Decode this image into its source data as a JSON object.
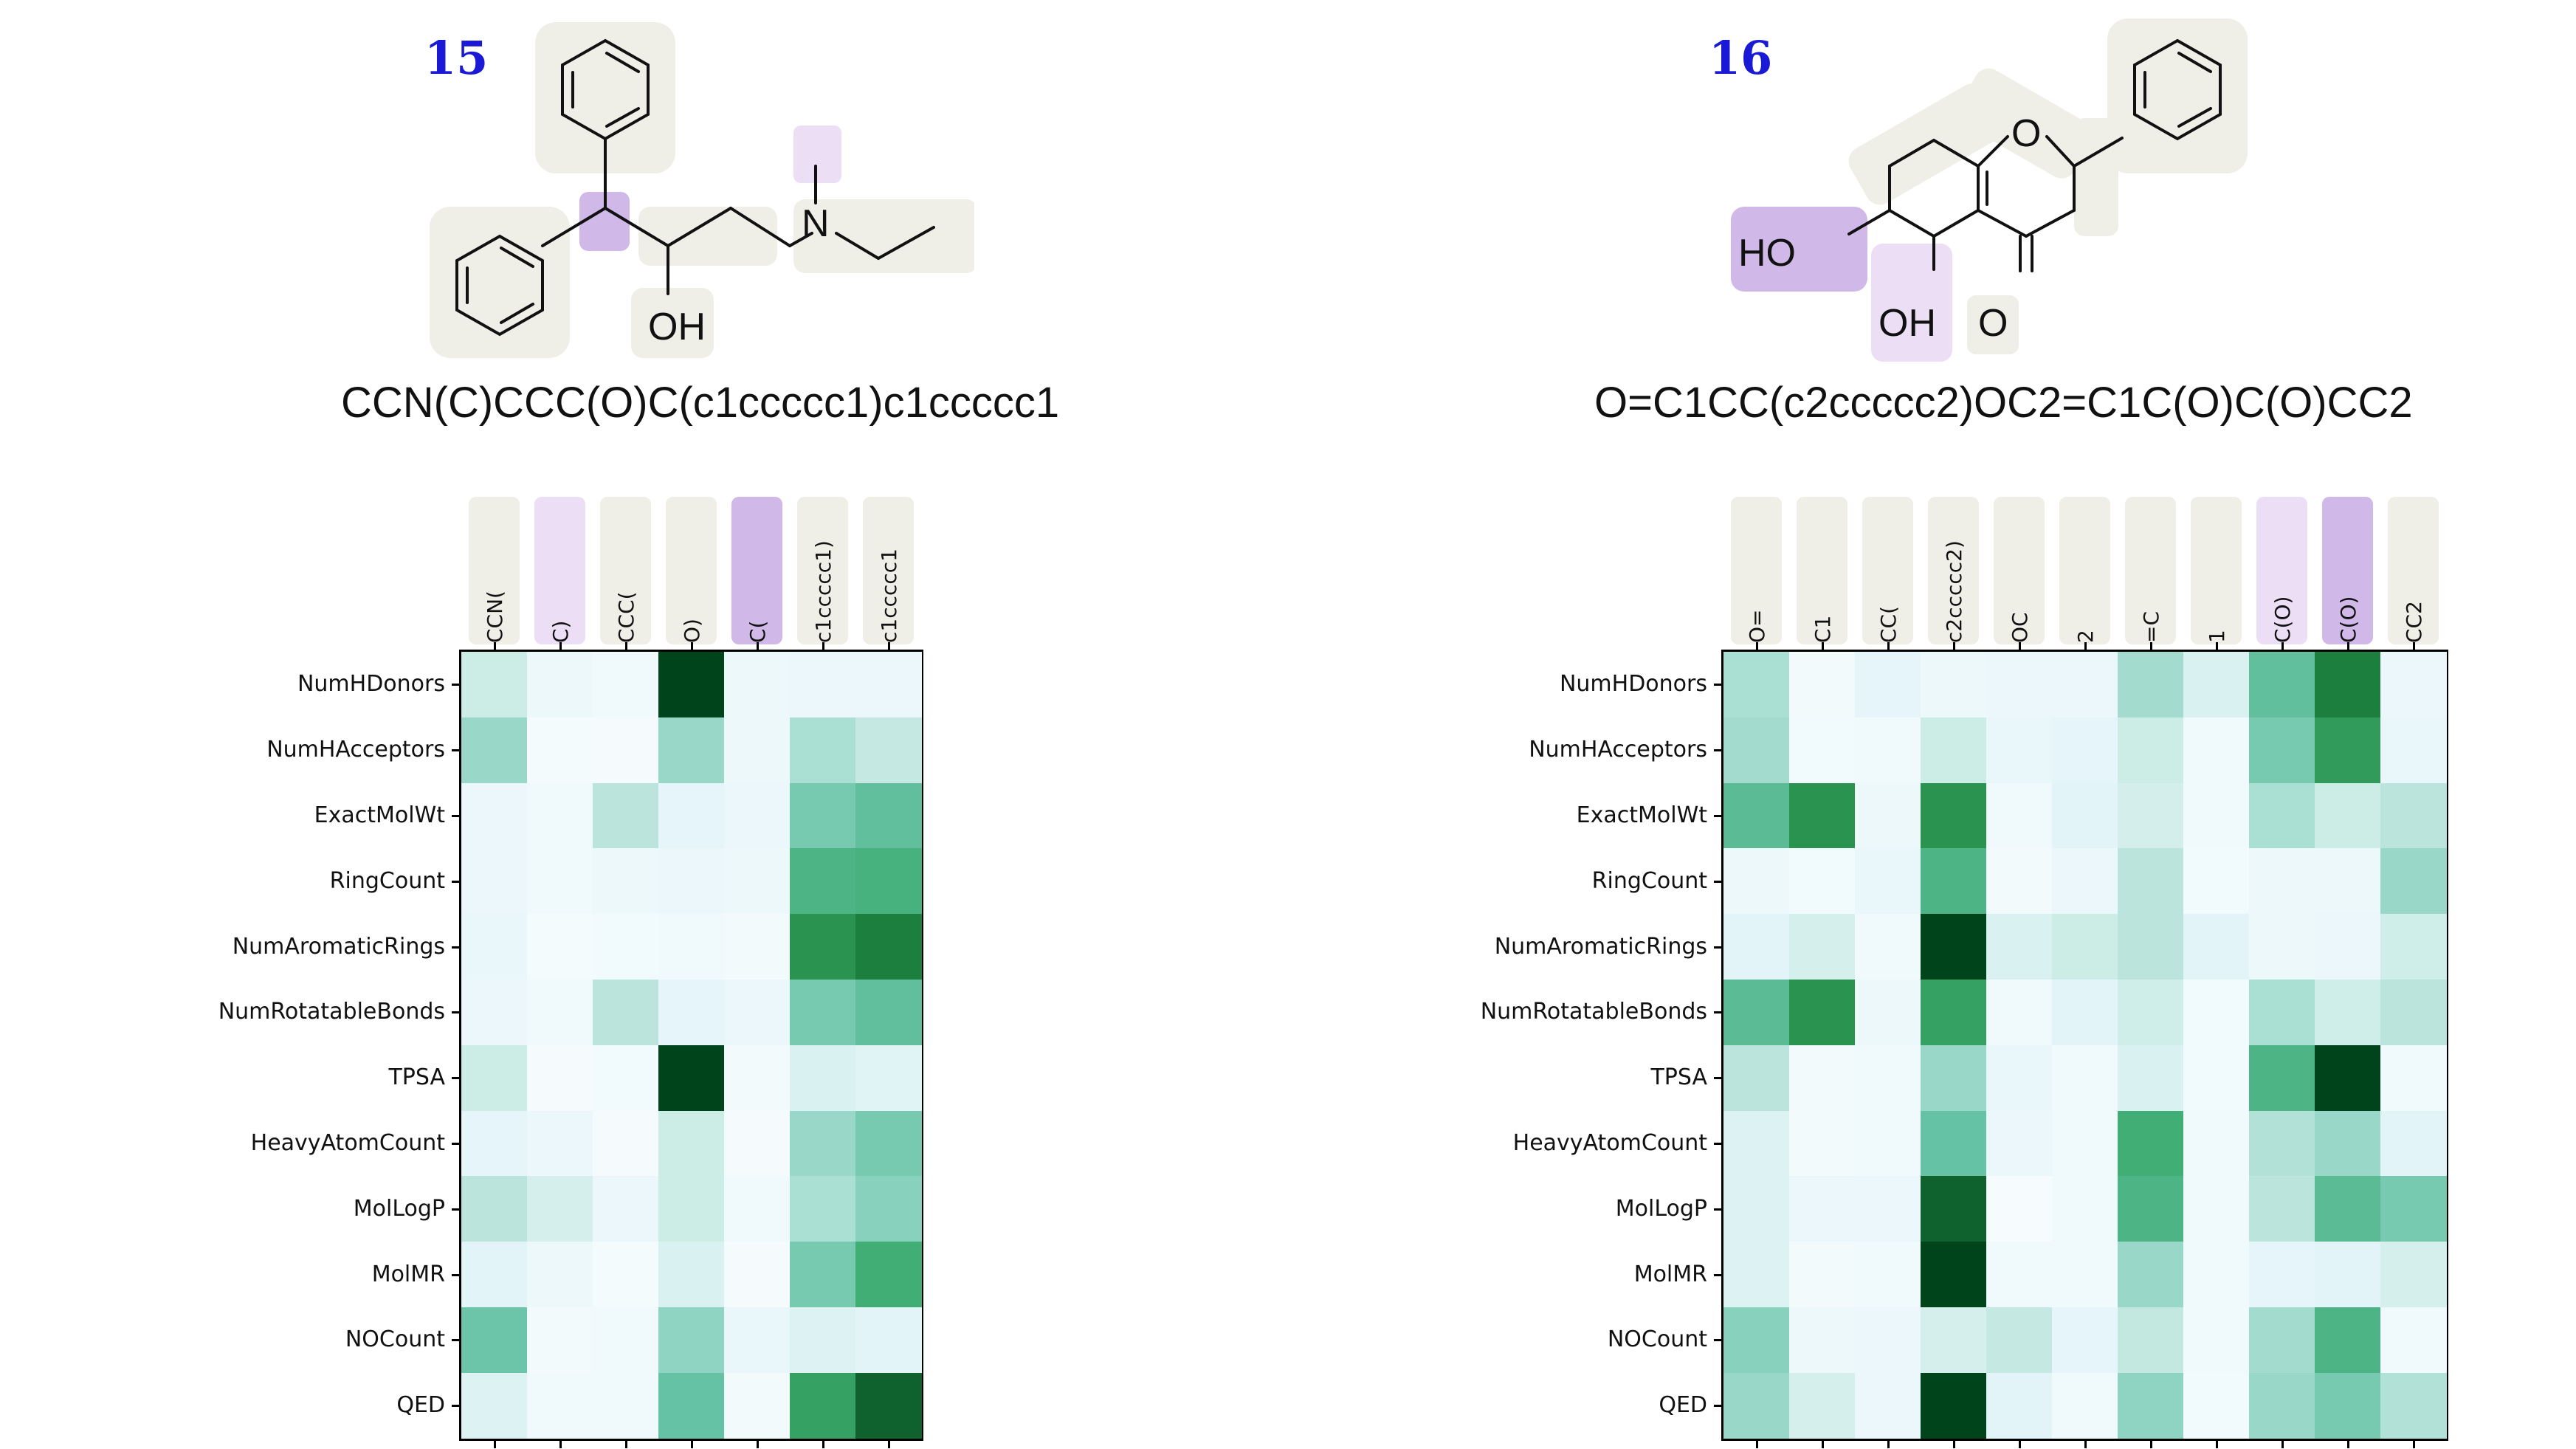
{
  "panels": [
    {
      "id": "15",
      "smiles": "CCN(C)CCC(O)C(c1ccccc1)c1ccccc1",
      "atom_labels": {
        "n": "N",
        "oh": "OH"
      },
      "chart_data": {
        "type": "heatmap",
        "columns": [
          "CCN(",
          "C)",
          "CCC(",
          "O)",
          "C(",
          "c1ccccc1)",
          "c1ccccc1"
        ],
        "column_highlight": [
          "gray",
          "light-purple",
          "gray",
          "gray",
          "purple",
          "gray",
          "gray"
        ],
        "rows": [
          "NumHDonors",
          "NumHAcceptors",
          "ExactMolWt",
          "RingCount",
          "NumAromaticRings",
          "NumRotatableBonds",
          "TPSA",
          "HeavyAtomCount",
          "MolLogP",
          "MolMR",
          "NOCount",
          "QED"
        ],
        "values": [
          [
            0.3,
            0.08,
            0.06,
            1.0,
            0.08,
            0.1,
            0.1
          ],
          [
            0.45,
            0.03,
            0.02,
            0.45,
            0.08,
            0.4,
            0.32
          ],
          [
            0.1,
            0.06,
            0.35,
            0.14,
            0.1,
            0.55,
            0.62
          ],
          [
            0.1,
            0.06,
            0.08,
            0.1,
            0.08,
            0.7,
            0.72
          ],
          [
            0.12,
            0.03,
            0.05,
            0.06,
            0.04,
            0.85,
            0.9
          ],
          [
            0.1,
            0.06,
            0.35,
            0.15,
            0.1,
            0.55,
            0.62
          ],
          [
            0.3,
            0.02,
            0.05,
            1.0,
            0.04,
            0.22,
            0.18
          ],
          [
            0.15,
            0.1,
            0.02,
            0.3,
            0.02,
            0.45,
            0.55
          ],
          [
            0.35,
            0.25,
            0.1,
            0.3,
            0.06,
            0.4,
            0.5
          ],
          [
            0.16,
            0.08,
            0.03,
            0.22,
            0.02,
            0.55,
            0.75
          ],
          [
            0.58,
            0.04,
            0.06,
            0.48,
            0.12,
            0.2,
            0.16
          ],
          [
            0.2,
            0.06,
            0.06,
            0.6,
            0.04,
            0.8,
            0.95
          ]
        ]
      }
    },
    {
      "id": "16",
      "smiles": "O=C1CC(c2ccccc2)OC2=C1C(O)C(O)CC2",
      "atom_labels": {
        "o_ring": "O",
        "ho": "HO",
        "oh": "OH",
        "o_keto": "O"
      },
      "chart_data": {
        "type": "heatmap",
        "columns": [
          "O=",
          "C1",
          "CC(",
          "c2ccccc2)",
          "OC",
          "2",
          "=C",
          "1",
          "C(O)",
          "C(O)",
          "CC2"
        ],
        "column_highlight": [
          "gray",
          "gray",
          "gray",
          "gray",
          "gray",
          "gray",
          "gray",
          "gray",
          "light-purple",
          "purple",
          "gray"
        ],
        "rows": [
          "NumHDonors",
          "NumHAcceptors",
          "ExactMolWt",
          "RingCount",
          "NumAromaticRings",
          "NumRotatableBonds",
          "TPSA",
          "HeavyAtomCount",
          "MolLogP",
          "MolMR",
          "NOCount",
          "QED"
        ],
        "values": [
          [
            0.4,
            0.04,
            0.15,
            0.08,
            0.1,
            0.1,
            0.42,
            0.22,
            0.62,
            0.9,
            0.1
          ],
          [
            0.42,
            0.05,
            0.06,
            0.3,
            0.12,
            0.14,
            0.3,
            0.06,
            0.55,
            0.82,
            0.12
          ],
          [
            0.65,
            0.85,
            0.08,
            0.85,
            0.06,
            0.16,
            0.26,
            0.06,
            0.4,
            0.3,
            0.35
          ],
          [
            0.08,
            0.05,
            0.12,
            0.7,
            0.04,
            0.1,
            0.35,
            0.05,
            0.08,
            0.08,
            0.45
          ],
          [
            0.16,
            0.25,
            0.06,
            1.0,
            0.22,
            0.3,
            0.35,
            0.16,
            0.08,
            0.1,
            0.28
          ],
          [
            0.65,
            0.85,
            0.08,
            0.8,
            0.06,
            0.16,
            0.28,
            0.05,
            0.4,
            0.28,
            0.35
          ],
          [
            0.35,
            0.04,
            0.06,
            0.45,
            0.12,
            0.06,
            0.22,
            0.05,
            0.7,
            1.0,
            0.06
          ],
          [
            0.2,
            0.04,
            0.06,
            0.6,
            0.1,
            0.06,
            0.75,
            0.06,
            0.38,
            0.45,
            0.16
          ],
          [
            0.2,
            0.1,
            0.1,
            0.95,
            0.01,
            0.06,
            0.7,
            0.06,
            0.35,
            0.65,
            0.55
          ],
          [
            0.2,
            0.04,
            0.06,
            1.0,
            0.06,
            0.06,
            0.45,
            0.06,
            0.14,
            0.16,
            0.25
          ],
          [
            0.5,
            0.08,
            0.1,
            0.25,
            0.32,
            0.14,
            0.33,
            0.06,
            0.42,
            0.7,
            0.06
          ],
          [
            0.45,
            0.25,
            0.1,
            1.0,
            0.16,
            0.06,
            0.48,
            0.05,
            0.45,
            0.55,
            0.38
          ]
        ]
      }
    }
  ],
  "colors": {
    "gray_highlight": "#efefe8",
    "purple_highlight": "#d0b8e8",
    "light_purple_highlight": "#ecdff5",
    "number_blue": "#1a1ad6"
  }
}
